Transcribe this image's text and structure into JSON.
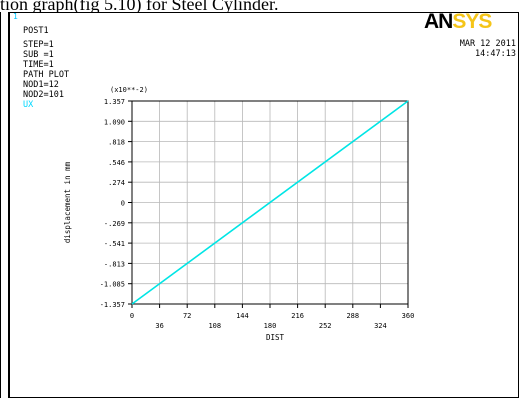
{
  "caption": "tion graph(fig 5.10) for Steel Cylinder.",
  "window": {
    "number": "1"
  },
  "info": {
    "post": "POST1",
    "step": "STEP=1",
    "sub": "SUB =1",
    "time": "TIME=1",
    "path": "PATH PLOT",
    "nod1": "NOD1=12",
    "nod2": "NOD2=101",
    "item": "UX"
  },
  "logo": {
    "part1": "AN",
    "part2": "SYS",
    "color_dark": "#000000",
    "color_accent": "#f5c518"
  },
  "datetime": {
    "date": "MAR 12 2011",
    "time": "14:47:13"
  },
  "chart_data": {
    "type": "line",
    "scale_note": "(x10**-2)",
    "xlabel": "DIST",
    "ylabel": "displacement in mm",
    "x_ticks_top": [
      "0",
      "72",
      "144",
      "216",
      "288",
      "360"
    ],
    "x_ticks_bottom": [
      "36",
      "108",
      "180",
      "252",
      "324"
    ],
    "x_tick_values": [
      0,
      36,
      72,
      108,
      144,
      180,
      216,
      252,
      288,
      324,
      360
    ],
    "y_ticks": [
      "1.357",
      "1.090",
      ".818",
      ".546",
      ".274",
      "0",
      "-.269",
      "-.541",
      "-.813",
      "-1.085",
      "-1.357"
    ],
    "xlim": [
      0,
      360
    ],
    "ylim": [
      -1.357,
      1.357
    ],
    "grid": true,
    "series": [
      {
        "color": "#00e5e5",
        "x": [
          0,
          360
        ],
        "y": [
          -1.357,
          1.357
        ]
      }
    ]
  }
}
